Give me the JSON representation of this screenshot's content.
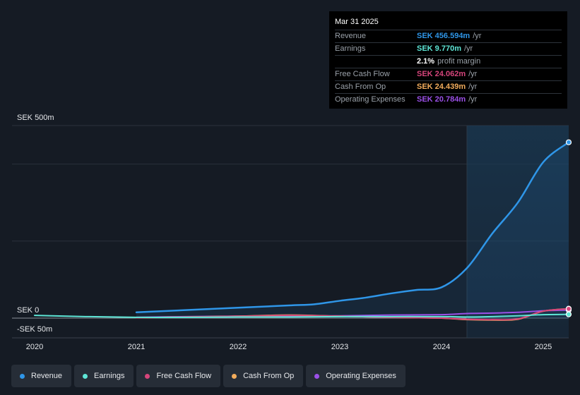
{
  "colors": {
    "revenue": "#2f96e8",
    "earnings": "#5ee6d6",
    "fcf": "#d6457b",
    "cfo": "#f2ac5c",
    "opex": "#9b50e8"
  },
  "tooltip": {
    "date": "Mar 31 2025",
    "rows": [
      {
        "label": "Revenue",
        "value": "SEK 456.594m",
        "unit": "/yr",
        "color": "#2f96e8"
      },
      {
        "label": "Earnings",
        "value": "SEK 9.770m",
        "unit": "/yr",
        "color": "#5ee6d6"
      },
      {
        "label": "",
        "value": "2.1%",
        "unit": "profit margin",
        "color": "#ffffff"
      },
      {
        "label": "Free Cash Flow",
        "value": "SEK 24.062m",
        "unit": "/yr",
        "color": "#d6457b"
      },
      {
        "label": "Cash From Op",
        "value": "SEK 24.439m",
        "unit": "/yr",
        "color": "#f2ac5c"
      },
      {
        "label": "Operating Expenses",
        "value": "SEK 20.784m",
        "unit": "/yr",
        "color": "#9b50e8"
      }
    ]
  },
  "legend": [
    {
      "label": "Revenue",
      "color": "#2f96e8"
    },
    {
      "label": "Earnings",
      "color": "#5ee6d6"
    },
    {
      "label": "Free Cash Flow",
      "color": "#d6457b"
    },
    {
      "label": "Cash From Op",
      "color": "#f2ac5c"
    },
    {
      "label": "Operating Expenses",
      "color": "#9b50e8"
    }
  ],
  "chart_data": {
    "type": "line",
    "y_tick_labels": [
      "SEK 500m",
      "SEK 0",
      "-SEK 50m"
    ],
    "ylim": [
      -50,
      500
    ],
    "x_tick_labels": [
      "2020",
      "2021",
      "2022",
      "2023",
      "2024",
      "2025"
    ],
    "xlim": [
      2020,
      2025.25
    ],
    "forecast_region_start": 2024.25,
    "series": [
      {
        "name": "Revenue",
        "color": "#2f96e8",
        "x": [
          2021.0,
          2021.5,
          2022.0,
          2022.5,
          2022.75,
          2023.0,
          2023.25,
          2023.5,
          2023.75,
          2024.0,
          2024.25,
          2024.5,
          2024.75,
          2025.0,
          2025.25
        ],
        "y": [
          15,
          21,
          27,
          33,
          36,
          45,
          53,
          64,
          73,
          80,
          130,
          220,
          300,
          405,
          456.594
        ]
      },
      {
        "name": "Earnings",
        "color": "#5ee6d6",
        "x": [
          2020.0,
          2020.5,
          2021.0,
          2021.5,
          2022.0,
          2022.5,
          2023.0,
          2023.5,
          2024.0,
          2024.25,
          2024.5,
          2024.75,
          2025.0,
          2025.25
        ],
        "y": [
          7,
          4,
          2,
          2,
          3,
          3,
          4,
          4,
          4,
          3,
          4,
          6,
          9,
          9.77
        ]
      },
      {
        "name": "Free Cash Flow",
        "color": "#d6457b",
        "x": [
          2021.0,
          2021.5,
          2022.0,
          2022.5,
          2023.0,
          2023.5,
          2024.0,
          2024.25,
          2024.5,
          2024.75,
          2025.0,
          2025.25
        ],
        "y": [
          1,
          3,
          5,
          7,
          5,
          2,
          0,
          -3,
          -4,
          -2,
          18,
          24.062
        ]
      },
      {
        "name": "Cash From Op",
        "color": "#f2ac5c",
        "x": [
          2021.0,
          2021.5,
          2022.0,
          2022.5,
          2023.0,
          2023.5,
          2024.0,
          2024.25,
          2024.5,
          2024.75,
          2025.0,
          2025.25
        ],
        "y": [
          1,
          3,
          5,
          8,
          5,
          2,
          0,
          -4,
          -5,
          -3,
          18,
          24.439
        ]
      },
      {
        "name": "Operating Expenses",
        "color": "#9b50e8",
        "x": [
          2021.0,
          2021.5,
          2022.0,
          2022.5,
          2023.0,
          2023.5,
          2024.0,
          2024.25,
          2024.5,
          2024.75,
          2025.0,
          2025.25
        ],
        "y": [
          2,
          4,
          5,
          6,
          6,
          8,
          9,
          12,
          13,
          15,
          19,
          20.784
        ]
      }
    ]
  }
}
